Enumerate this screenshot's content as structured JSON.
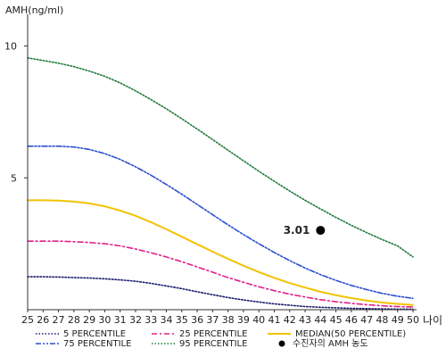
{
  "chart_data": {
    "type": "line",
    "title": "",
    "ylabel": "AMH(ng/ml)",
    "xlabel": "나이",
    "x": [
      25,
      26,
      27,
      28,
      29,
      30,
      31,
      32,
      33,
      34,
      35,
      36,
      37,
      38,
      39,
      40,
      41,
      42,
      43,
      44,
      45,
      46,
      47,
      48,
      49,
      50
    ],
    "xlim": [
      25,
      50
    ],
    "ylim": [
      0,
      11
    ],
    "yticks": [
      5,
      10
    ],
    "grid": false,
    "legend_position": "bottom",
    "series": [
      {
        "name": "5 PERCENTILE",
        "color": "#1a1a6e",
        "dash": "dotted",
        "values": [
          1.25,
          1.25,
          1.24,
          1.22,
          1.2,
          1.17,
          1.13,
          1.08,
          1.0,
          0.9,
          0.8,
          0.68,
          0.57,
          0.46,
          0.37,
          0.29,
          0.22,
          0.17,
          0.12,
          0.09,
          0.07,
          0.05,
          0.04,
          0.03,
          0.02,
          0.02
        ]
      },
      {
        "name": "25 PERCENTILE",
        "color": "#e0218a",
        "dash": "dashdot",
        "values": [
          2.6,
          2.6,
          2.6,
          2.58,
          2.55,
          2.5,
          2.42,
          2.3,
          2.16,
          2.0,
          1.82,
          1.62,
          1.42,
          1.22,
          1.04,
          0.87,
          0.72,
          0.59,
          0.48,
          0.38,
          0.3,
          0.24,
          0.19,
          0.15,
          0.12,
          0.1
        ]
      },
      {
        "name": "MEDIAN(50 PERCENTILE)",
        "color": "#f2c200",
        "dash": "solid",
        "values": [
          4.15,
          4.15,
          4.14,
          4.1,
          4.03,
          3.92,
          3.76,
          3.56,
          3.32,
          3.05,
          2.77,
          2.48,
          2.2,
          1.93,
          1.67,
          1.43,
          1.21,
          1.01,
          0.84,
          0.68,
          0.55,
          0.44,
          0.35,
          0.27,
          0.22,
          0.18
        ]
      },
      {
        "name": "75 PERCENTILE",
        "color": "#2a4fd0",
        "dash": "dashdotdot",
        "values": [
          6.2,
          6.2,
          6.2,
          6.17,
          6.08,
          5.92,
          5.7,
          5.42,
          5.1,
          4.75,
          4.38,
          3.99,
          3.6,
          3.22,
          2.85,
          2.5,
          2.17,
          1.86,
          1.58,
          1.33,
          1.11,
          0.92,
          0.76,
          0.62,
          0.51,
          0.43
        ]
      },
      {
        "name": "95 PERCENTILE",
        "color": "#1f7a3a",
        "dash": "dotted",
        "values": [
          9.55,
          9.45,
          9.35,
          9.22,
          9.05,
          8.85,
          8.6,
          8.3,
          7.97,
          7.62,
          7.24,
          6.85,
          6.45,
          6.05,
          5.65,
          5.25,
          4.87,
          4.5,
          4.15,
          3.82,
          3.5,
          3.2,
          2.92,
          2.66,
          2.42,
          2.0
        ]
      }
    ],
    "patient_point": {
      "name": "수진자의 AMH 농도",
      "x": 44,
      "y": 3.01,
      "label": "3.01",
      "color": "#000000"
    }
  }
}
